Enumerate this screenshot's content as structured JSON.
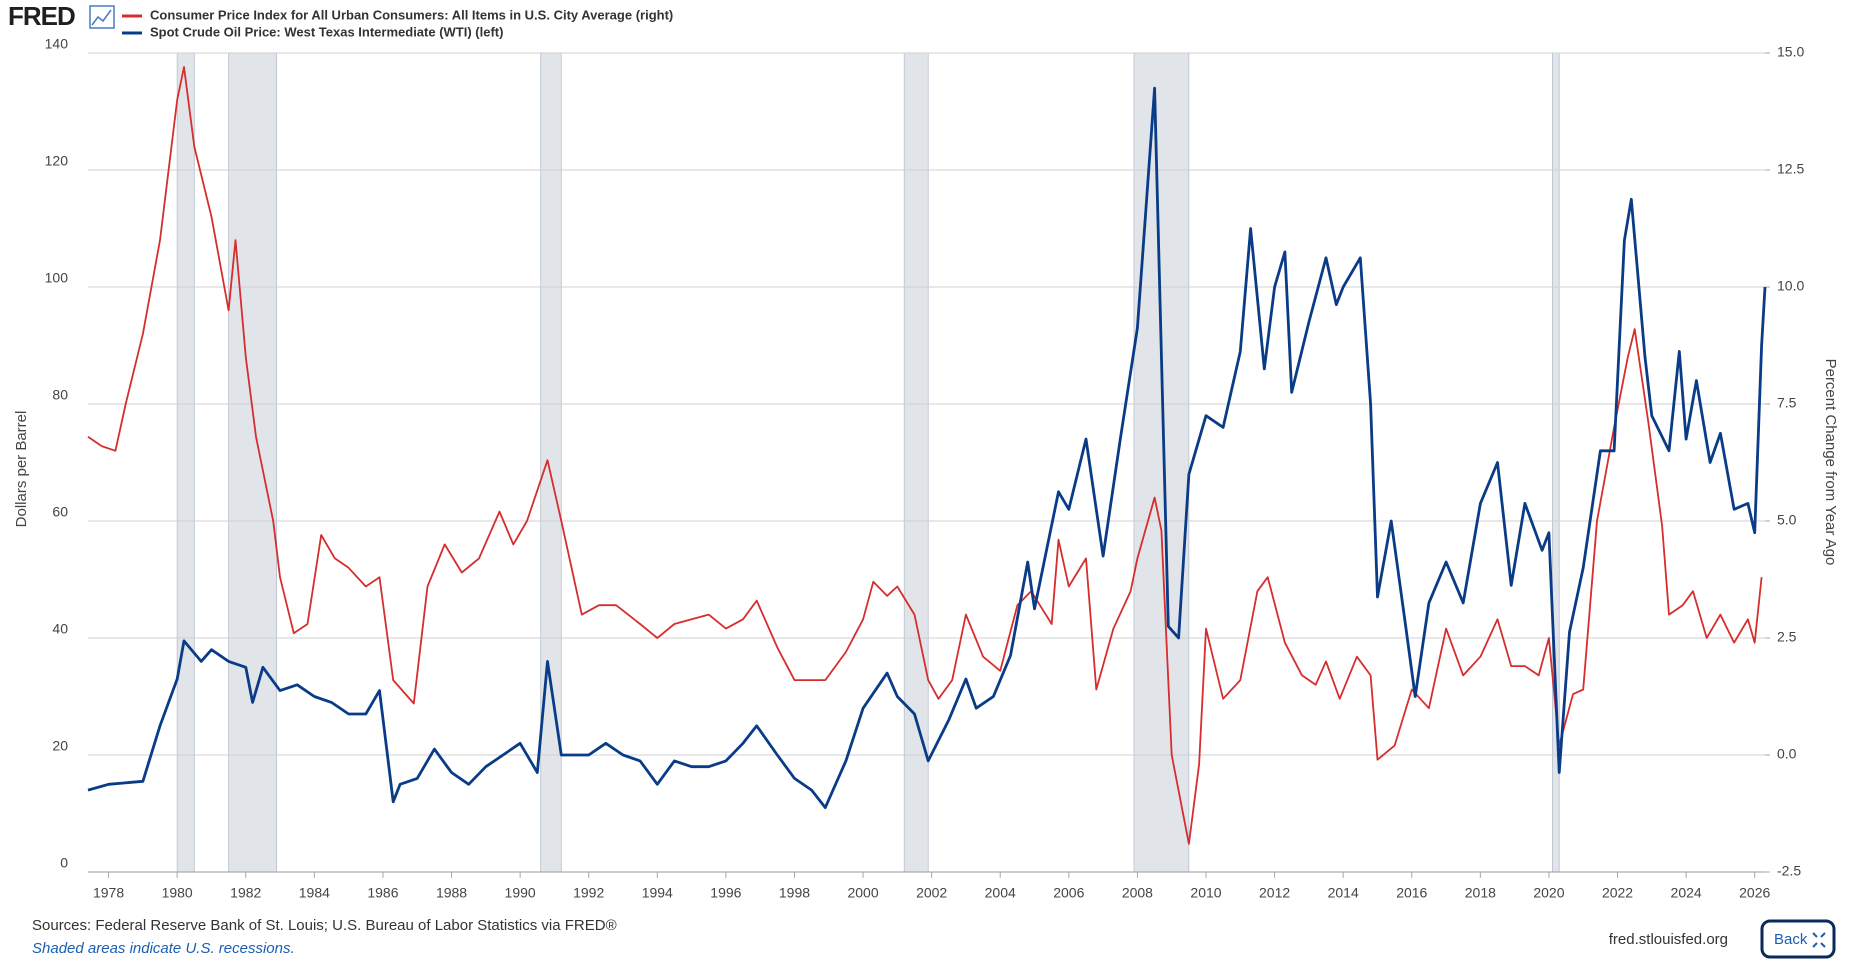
{
  "header": {
    "logo": "FRED"
  },
  "chart_data": {
    "type": "line",
    "series": [
      {
        "name": "Consumer Price Index for All Urban Consumers: All Items in U.S. City Average (right)",
        "color": "#d62d2d",
        "axis": "y2",
        "x": [
          1977.4,
          1977.8,
          1978.2,
          1978.5,
          1979.0,
          1979.5,
          1980.0,
          1980.2,
          1980.5,
          1981.0,
          1981.5,
          1981.7,
          1982.0,
          1982.3,
          1982.8,
          1983.0,
          1983.4,
          1983.8,
          1984.2,
          1984.6,
          1985.0,
          1985.5,
          1985.9,
          1986.3,
          1986.9,
          1987.3,
          1987.8,
          1988.3,
          1988.8,
          1989.4,
          1989.8,
          1990.2,
          1990.8,
          1991.2,
          1991.8,
          1992.3,
          1992.8,
          1993.5,
          1994.0,
          1994.5,
          1995.0,
          1995.5,
          1996.0,
          1996.5,
          1996.9,
          1997.5,
          1998.0,
          1998.5,
          1998.9,
          1999.5,
          2000.0,
          2000.3,
          2000.7,
          2001.0,
          2001.5,
          2001.9,
          2002.2,
          2002.6,
          2003.0,
          2003.5,
          2004.0,
          2004.5,
          2004.9,
          2005.5,
          2005.7,
          2006.0,
          2006.5,
          2006.8,
          2007.3,
          2007.8,
          2008.0,
          2008.5,
          2008.7,
          2009.0,
          2009.5,
          2009.8,
          2010.0,
          2010.5,
          2011.0,
          2011.5,
          2011.8,
          2012.3,
          2012.8,
          2013.2,
          2013.5,
          2013.9,
          2014.4,
          2014.8,
          2015.0,
          2015.5,
          2016.0,
          2016.5,
          2017.0,
          2017.5,
          2018.0,
          2018.5,
          2018.9,
          2019.3,
          2019.7,
          2020.0,
          2020.3,
          2020.7,
          2021.0,
          2021.4,
          2021.9,
          2022.3,
          2022.5,
          2022.9,
          2023.3,
          2023.5,
          2023.9,
          2024.2,
          2024.6,
          2025.0,
          2025.4,
          2025.8,
          2026.0,
          2026.2
        ],
        "values": [
          6.8,
          6.6,
          6.5,
          7.5,
          9.0,
          11.0,
          14.0,
          14.7,
          13.0,
          11.5,
          9.5,
          11.0,
          8.5,
          6.8,
          5.0,
          3.8,
          2.6,
          2.8,
          4.7,
          4.2,
          4.0,
          3.6,
          3.8,
          1.6,
          1.1,
          3.6,
          4.5,
          3.9,
          4.2,
          5.2,
          4.5,
          5.0,
          6.3,
          5.0,
          3.0,
          3.2,
          3.2,
          2.8,
          2.5,
          2.8,
          2.9,
          3.0,
          2.7,
          2.9,
          3.3,
          2.3,
          1.6,
          1.6,
          1.6,
          2.2,
          2.9,
          3.7,
          3.4,
          3.6,
          3.0,
          1.6,
          1.2,
          1.6,
          3.0,
          2.1,
          1.8,
          3.2,
          3.5,
          2.8,
          4.6,
          3.6,
          4.2,
          1.4,
          2.7,
          3.5,
          4.2,
          5.5,
          4.8,
          0.0,
          -1.9,
          -0.2,
          2.7,
          1.2,
          1.6,
          3.5,
          3.8,
          2.4,
          1.7,
          1.5,
          2.0,
          1.2,
          2.1,
          1.7,
          -0.1,
          0.2,
          1.4,
          1.0,
          2.7,
          1.7,
          2.1,
          2.9,
          1.9,
          1.9,
          1.7,
          2.5,
          0.2,
          1.3,
          1.4,
          5.0,
          7.0,
          8.5,
          9.1,
          7.1,
          4.9,
          3.0,
          3.2,
          3.5,
          2.5,
          3.0,
          2.4,
          2.9,
          2.4,
          3.8
        ]
      },
      {
        "name": "Spot Crude Oil Price: West Texas Intermediate (WTI) (left)",
        "color": "#0a3b87",
        "x": [
          1977.4,
          1978.0,
          1979.0,
          1979.5,
          1980.0,
          1980.2,
          1980.7,
          1981.0,
          1981.5,
          1982.0,
          1982.2,
          1982.5,
          1983.0,
          1983.5,
          1984.0,
          1984.5,
          1985.0,
          1985.5,
          1985.9,
          1986.3,
          1986.5,
          1987.0,
          1987.5,
          1988.0,
          1988.5,
          1989.0,
          1989.5,
          1990.0,
          1990.5,
          1990.8,
          1991.0,
          1991.2,
          1992.0,
          1992.5,
          1993.0,
          1993.5,
          1994.0,
          1994.5,
          1995.0,
          1995.5,
          1996.0,
          1996.5,
          1996.9,
          1997.5,
          1998.0,
          1998.5,
          1998.9,
          1999.5,
          2000.0,
          2000.7,
          2001.0,
          2001.5,
          2001.9,
          2002.5,
          2003.0,
          2003.3,
          2003.8,
          2004.3,
          2004.8,
          2005.0,
          2005.7,
          2006.0,
          2006.5,
          2007.0,
          2007.5,
          2008.0,
          2008.5,
          2008.9,
          2009.2,
          2009.5,
          2010.0,
          2010.5,
          2011.0,
          2011.3,
          2011.7,
          2012.0,
          2012.3,
          2012.5,
          2013.0,
          2013.5,
          2013.8,
          2014.0,
          2014.5,
          2014.8,
          2015.0,
          2015.4,
          2015.8,
          2016.1,
          2016.5,
          2017.0,
          2017.5,
          2018.0,
          2018.5,
          2018.9,
          2019.3,
          2019.8,
          2020.0,
          2020.3,
          2020.6,
          2021.0,
          2021.5,
          2021.9,
          2022.2,
          2022.4,
          2022.8,
          2023.0,
          2023.5,
          2023.8,
          2024.0,
          2024.3,
          2024.7,
          2025.0,
          2025.4,
          2025.8,
          2026.0,
          2026.2,
          2026.3
        ],
        "values": [
          14,
          15,
          15.5,
          25,
          33,
          39.5,
          36,
          38,
          36,
          35,
          29,
          35,
          31,
          32,
          30,
          29,
          27,
          27,
          31,
          12,
          15,
          16,
          21,
          17,
          15,
          18,
          20,
          22,
          17,
          36,
          28,
          20,
          20,
          22,
          20,
          19,
          15,
          19,
          18,
          18,
          19,
          22,
          25,
          20,
          16,
          14,
          11,
          19,
          28,
          34,
          30,
          27,
          19,
          26,
          33,
          28,
          30,
          37,
          53,
          45,
          65,
          62,
          74,
          54,
          74,
          93,
          134,
          42,
          40,
          68,
          78,
          76,
          89,
          110,
          86,
          100,
          106,
          82,
          94,
          105,
          97,
          100,
          105,
          80,
          47,
          60,
          43,
          30,
          46,
          53,
          46,
          63,
          70,
          49,
          63,
          55,
          58,
          17,
          41,
          52,
          72,
          72,
          108,
          115,
          88,
          78,
          72,
          89,
          74,
          84,
          70,
          75,
          62,
          63,
          58,
          90,
          100
        ]
      }
    ],
    "recessions": [
      [
        1980.0,
        1980.5
      ],
      [
        1981.5,
        1982.9
      ],
      [
        1990.6,
        1991.2
      ],
      [
        2001.2,
        2001.9
      ],
      [
        2007.9,
        2009.5
      ],
      [
        2020.1,
        2020.3
      ]
    ],
    "recession_color": "#e1e5ea",
    "xlim": [
      1977.4,
      2026.3
    ],
    "xticks": [
      1978,
      1980,
      1982,
      1984,
      1986,
      1988,
      1990,
      1992,
      1994,
      1996,
      1998,
      2000,
      2002,
      2004,
      2006,
      2008,
      2010,
      2012,
      2014,
      2016,
      2018,
      2020,
      2022,
      2024,
      2026
    ],
    "ylim": [
      0,
      140
    ],
    "yticks": [
      0,
      20,
      40,
      60,
      80,
      100,
      120,
      140
    ],
    "y2lim": [
      -2.5,
      15
    ],
    "y2ticks": [
      -2.5,
      {
        "value": 0,
        "label": "0.0"
      },
      2.5,
      {
        "value": 5,
        "label": "5.0"
      },
      7.5,
      {
        "value": 10,
        "label": "10.0"
      },
      12.5,
      {
        "value": 15,
        "label": "15.0"
      }
    ],
    "ylabel": "Dollars per Barrel",
    "y2label": "Percent Change from Year Ago",
    "grid": true,
    "source": "Sources: Federal Reserve Bank of St. Louis; U.S. Bureau of Labor Statistics via FRED®",
    "note": "Shaded areas indicate U.S. recessions.",
    "site": "fred.stlouisfed.org"
  },
  "button": "Back"
}
